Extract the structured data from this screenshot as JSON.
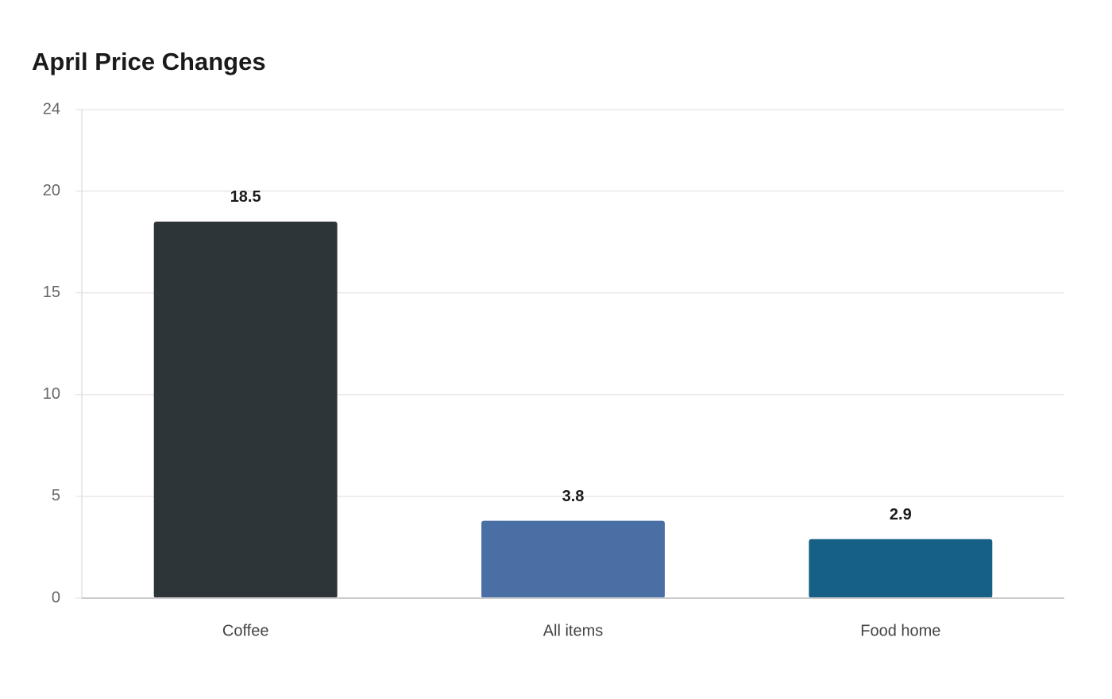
{
  "chart_data": {
    "type": "bar",
    "title": "April Price Changes",
    "categories": [
      "Coffee",
      "All items",
      "Food home"
    ],
    "values": [
      18.5,
      3.8,
      2.9
    ],
    "colors": [
      "#2e3538",
      "#4a6fa5",
      "#166086"
    ],
    "ylim": [
      0,
      24
    ],
    "yticks": [
      0,
      5,
      10,
      15,
      20,
      24
    ],
    "grid": true
  }
}
